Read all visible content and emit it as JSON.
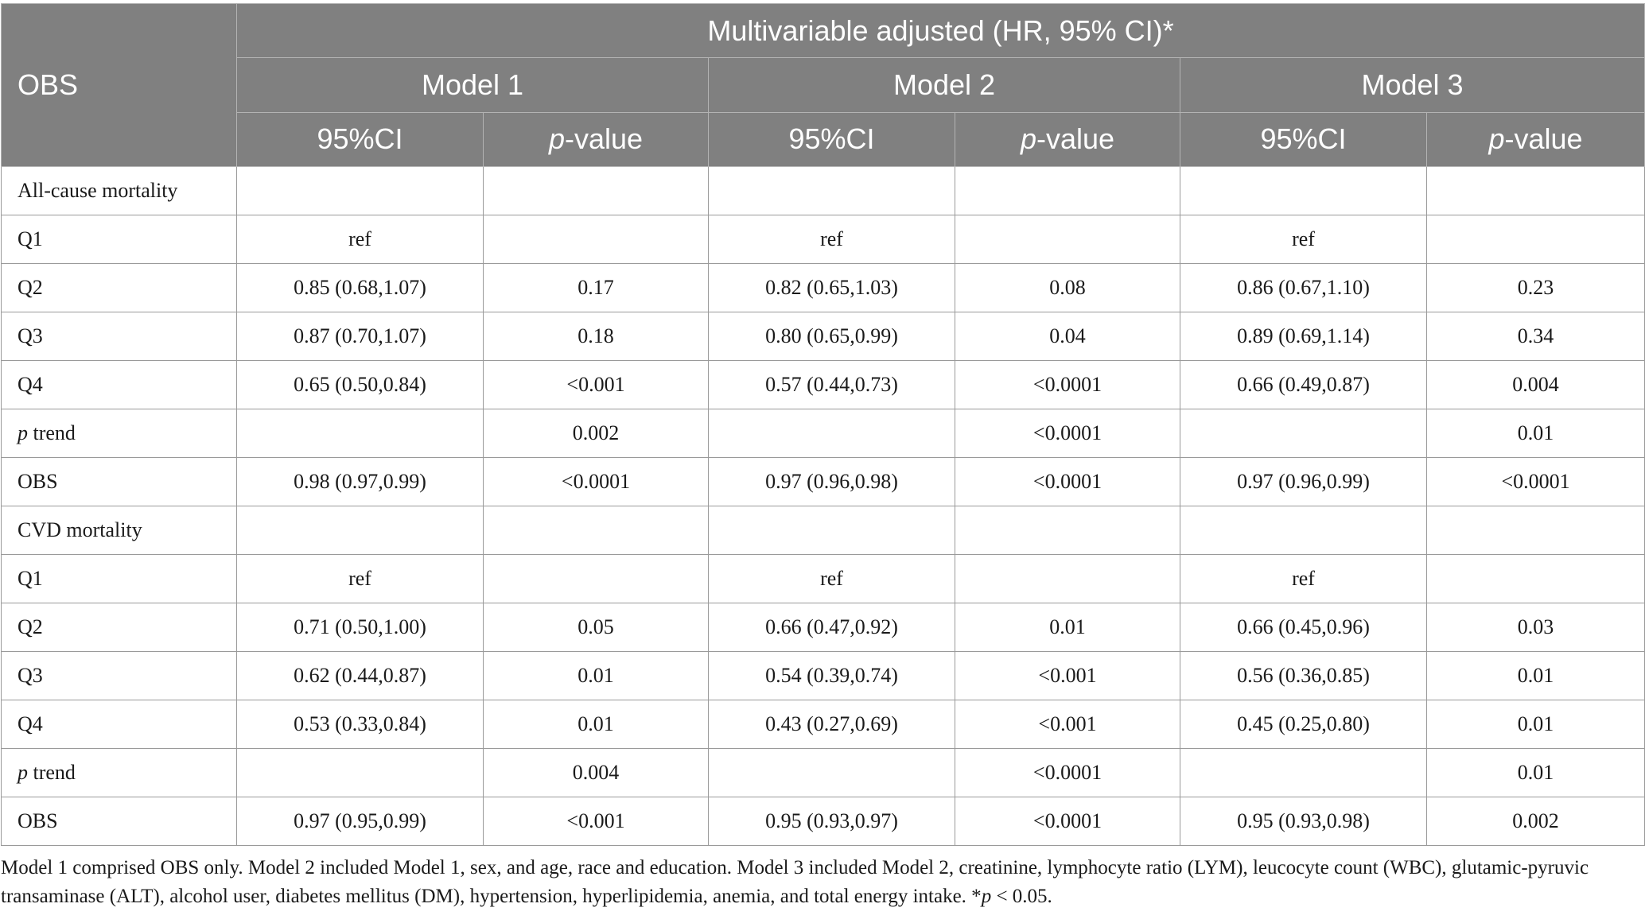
{
  "header": {
    "row_label": "OBS",
    "group_title": "Multivariable adjusted (HR, 95% CI)*",
    "models": [
      "Model 1",
      "Model 2",
      "Model 3"
    ],
    "ci_label": "95%CI",
    "p_prefix": "p",
    "p_suffix": "-value"
  },
  "sections": [
    {
      "title": "All-cause mortality",
      "rows": [
        {
          "label": "Q1",
          "cells": [
            "ref",
            "",
            "ref",
            "",
            "ref",
            ""
          ]
        },
        {
          "label": "Q2",
          "cells": [
            "0.85 (0.68,1.07)",
            "0.17",
            "0.82 (0.65,1.03)",
            "0.08",
            "0.86 (0.67,1.10)",
            "0.23"
          ]
        },
        {
          "label": "Q3",
          "cells": [
            "0.87 (0.70,1.07)",
            "0.18",
            "0.80 (0.65,0.99)",
            "0.04",
            "0.89 (0.69,1.14)",
            "0.34"
          ]
        },
        {
          "label": "Q4",
          "cells": [
            "0.65 (0.50,0.84)",
            "<0.001",
            "0.57 (0.44,0.73)",
            "<0.0001",
            "0.66 (0.49,0.87)",
            "0.004"
          ]
        },
        {
          "label_italic": "p",
          "label_rest": " trend",
          "cells": [
            "",
            "0.002",
            "",
            "<0.0001",
            "",
            "0.01"
          ]
        },
        {
          "label": "OBS",
          "cells": [
            "0.98 (0.97,0.99)",
            "<0.0001",
            "0.97 (0.96,0.98)",
            "<0.0001",
            "0.97 (0.96,0.99)",
            "<0.0001"
          ]
        }
      ]
    },
    {
      "title": "CVD mortality",
      "rows": [
        {
          "label": "Q1",
          "cells": [
            "ref",
            "",
            "ref",
            "",
            "ref",
            ""
          ]
        },
        {
          "label": "Q2",
          "cells": [
            "0.71 (0.50,1.00)",
            "0.05",
            "0.66 (0.47,0.92)",
            "0.01",
            "0.66 (0.45,0.96)",
            "0.03"
          ]
        },
        {
          "label": "Q3",
          "cells": [
            "0.62 (0.44,0.87)",
            "0.01",
            "0.54 (0.39,0.74)",
            "<0.001",
            "0.56 (0.36,0.85)",
            "0.01"
          ]
        },
        {
          "label": "Q4",
          "cells": [
            "0.53 (0.33,0.84)",
            "0.01",
            "0.43 (0.27,0.69)",
            "<0.001",
            "0.45 (0.25,0.80)",
            "0.01"
          ]
        },
        {
          "label_italic": "p",
          "label_rest": " trend",
          "cells": [
            "",
            "0.004",
            "",
            "<0.0001",
            "",
            "0.01"
          ]
        },
        {
          "label": "OBS",
          "cells": [
            "0.97 (0.95,0.99)",
            "<0.001",
            "0.95 (0.93,0.97)",
            "<0.0001",
            "0.95 (0.93,0.98)",
            "0.002"
          ]
        }
      ]
    }
  ],
  "footnote": {
    "text": "Model 1 comprised OBS only. Model 2 included Model 1, sex, and age, race and education. Model 3 included Model 2, creatinine, lymphocyte ratio (LYM), leucocyte count (WBC), glutamic-pyruvic transaminase (ALT), alcohol user, diabetes mellitus (DM), hypertension, hyperlipidemia, anemia, and total energy intake. *",
    "sig_italic": "p",
    "sig_rest": " < 0.05."
  }
}
